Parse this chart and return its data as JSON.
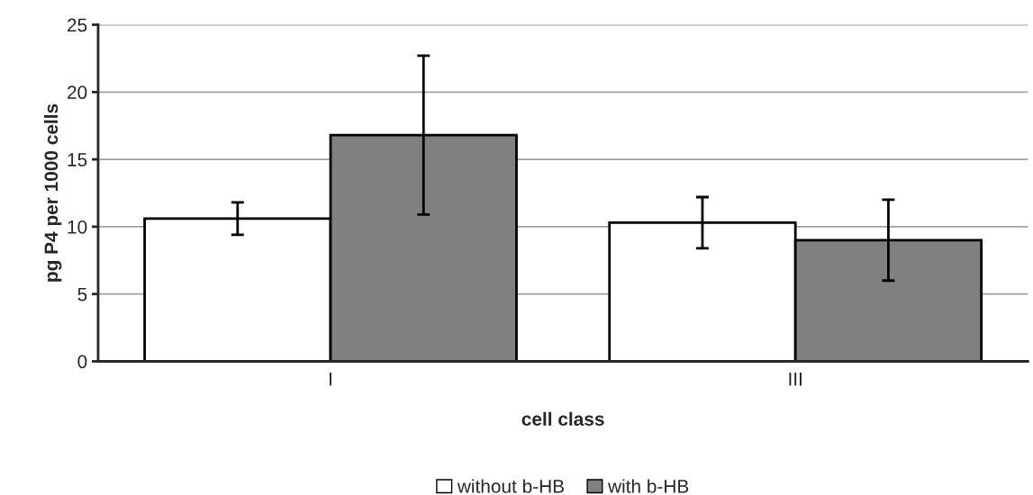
{
  "chart_data": {
    "type": "bar",
    "xlabel": "cell class",
    "ylabel": "pg P4 per 1000 cells",
    "categories": [
      "I",
      "III"
    ],
    "series": [
      {
        "name": "without b-HB",
        "color": "#ffffff",
        "values": [
          10.6,
          10.3
        ],
        "errors": [
          1.2,
          1.9
        ]
      },
      {
        "name": "with b-HB",
        "color": "#808080",
        "values": [
          16.8,
          9.0
        ],
        "errors": [
          5.9,
          3.0
        ]
      }
    ],
    "ylim": [
      0,
      25
    ],
    "yticks": [
      0,
      5,
      10,
      15,
      20,
      25
    ],
    "grid": "y",
    "legend": "bottom"
  }
}
